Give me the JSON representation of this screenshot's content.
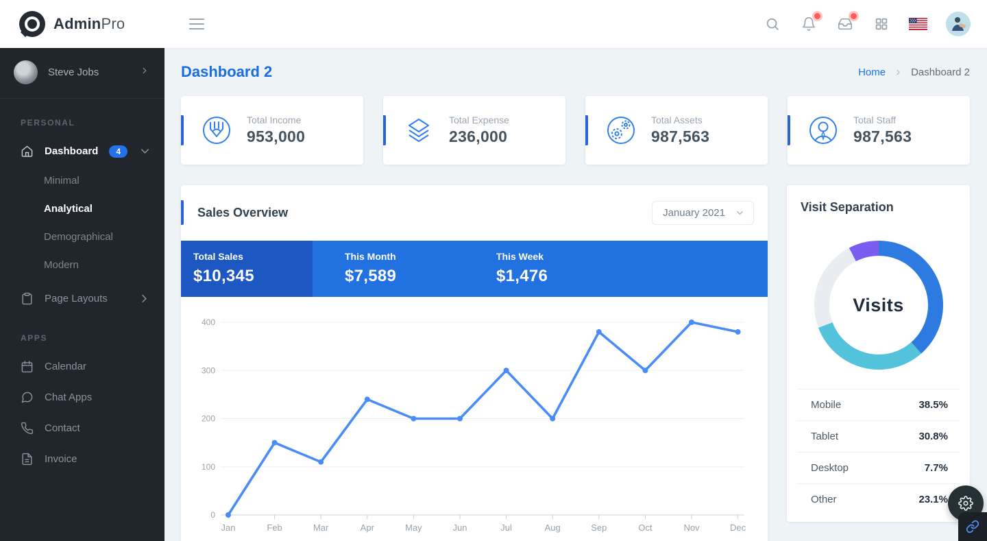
{
  "brand": {
    "bold": "Admin",
    "light": "Pro"
  },
  "topbar": {
    "icons": [
      "hamburger-icon",
      "search-icon",
      "bell-icon",
      "inbox-icon",
      "grid-icon",
      "us-flag-icon",
      "user-avatar"
    ],
    "bell_has_badge": true,
    "inbox_has_badge": true
  },
  "sidebar": {
    "user": {
      "name": "Steve Jobs"
    },
    "sections": [
      {
        "label": "PERSONAL",
        "items": [
          {
            "label": "Dashboard",
            "icon": "home-icon",
            "badge": "4",
            "expanded": true,
            "children": [
              {
                "label": "Minimal",
                "active": false
              },
              {
                "label": "Analytical",
                "active": true
              },
              {
                "label": "Demographical",
                "active": false
              },
              {
                "label": "Modern",
                "active": false
              }
            ]
          },
          {
            "label": "Page Layouts",
            "icon": "clipboard-icon",
            "expanded": false
          }
        ]
      },
      {
        "label": "APPS",
        "items": [
          {
            "label": "Calendar",
            "icon": "calendar-icon"
          },
          {
            "label": "Chat Apps",
            "icon": "chat-icon"
          },
          {
            "label": "Contact",
            "icon": "phone-icon"
          },
          {
            "label": "Invoice",
            "icon": "file-icon"
          }
        ]
      }
    ]
  },
  "page": {
    "title": "Dashboard 2",
    "breadcrumb_home": "Home",
    "breadcrumb_current": "Dashboard 2"
  },
  "stats": [
    {
      "label": "Total Income",
      "value": "953,000",
      "icon": "pen-circle-icon"
    },
    {
      "label": "Total Expense",
      "value": "236,000",
      "icon": "layers-icon"
    },
    {
      "label": "Total Assets",
      "value": "987,563",
      "icon": "gears-icon"
    },
    {
      "label": "Total Staff",
      "value": "987,563",
      "icon": "person-circle-icon"
    }
  ],
  "sales": {
    "title": "Sales Overview",
    "period_selected": "January 2021",
    "summary": [
      {
        "label": "Total Sales",
        "value": "$10,345"
      },
      {
        "label": "This Month",
        "value": "$7,589"
      },
      {
        "label": "This Week",
        "value": "$1,476"
      }
    ]
  },
  "visits": {
    "title": "Visit Separation",
    "center_label": "Visits",
    "legend": [
      {
        "label": "Mobile",
        "value": "38.5%"
      },
      {
        "label": "Tablet",
        "value": "30.8%"
      },
      {
        "label": "Desktop",
        "value": "7.7%"
      },
      {
        "label": "Other",
        "value": "23.1%"
      }
    ]
  },
  "chart_data": [
    {
      "type": "line",
      "title": "Sales Overview",
      "x": [
        "Jan",
        "Feb",
        "Mar",
        "Apr",
        "May",
        "Jun",
        "Jul",
        "Aug",
        "Sep",
        "Oct",
        "Nov",
        "Dec"
      ],
      "values": [
        0,
        150,
        110,
        240,
        200,
        200,
        300,
        200,
        380,
        300,
        400,
        380
      ],
      "xlabel": "",
      "ylabel": "",
      "ylim": [
        0,
        430
      ],
      "yticks": [
        0,
        100,
        200,
        300,
        400
      ],
      "grid": true,
      "legend_position": "none",
      "line_color": "#4a8cf5",
      "marker": "circle"
    },
    {
      "type": "pie",
      "title": "Visit Separation",
      "center_label": "Visits",
      "segments_clockwise_from_top": [
        {
          "label": "Mobile",
          "value": 38.5,
          "color": "#2d7be0"
        },
        {
          "label": "Tablet",
          "value": 30.8,
          "color": "#53c3dc"
        },
        {
          "label": "Other",
          "value": 23.1,
          "color": "#e9edf1"
        },
        {
          "label": "Desktop",
          "value": 7.7,
          "color": "#7b5cf0"
        }
      ],
      "donut": true
    }
  ],
  "colors": {
    "accent_bar": "#2962d9",
    "banner_blue": "#2271e0",
    "banner_dark_blue": "#1c57c2",
    "primary_link": "#1a73e8",
    "sidebar_bg": "#20262c",
    "badge_blue": "#2471ea",
    "notification_red": "#ff5c5c",
    "line_blue": "#4a8cf5"
  }
}
